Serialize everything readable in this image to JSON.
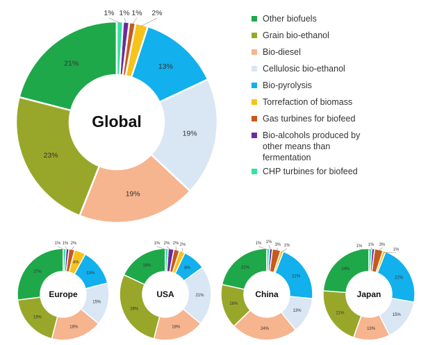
{
  "chart_data": {
    "type": "pie",
    "categories": [
      "Other biofuels",
      "Grain bio-ethanol",
      "Bio-diesel",
      "Cellulosic bio-ethanol",
      "Bio-pyrolysis",
      "Torrefaction of biomass",
      "Gas turbines for biofeed",
      "Bio-alcohols produced by other means than fermentation",
      "CHP turbines for biofeed"
    ],
    "colors": [
      "#1ea84a",
      "#98a72a",
      "#f6b48f",
      "#d9e6f3",
      "#12b0ec",
      "#f7c21c",
      "#c55a1e",
      "#6b2b9c",
      "#34e39e"
    ],
    "charts": [
      {
        "title": "Global",
        "values": [
          21,
          23,
          19,
          19,
          13,
          2,
          1,
          1,
          1
        ],
        "labels": [
          "21%",
          "23%",
          "19%",
          "19%",
          "13%",
          "2%",
          "1%",
          "1%",
          "1%"
        ]
      },
      {
        "title": "Europe",
        "values": [
          27,
          19,
          18,
          15,
          13,
          4,
          2,
          1,
          1
        ],
        "labels": [
          "27%",
          "19%",
          "18%",
          "15%",
          "13%",
          "4%",
          "2%",
          "1%",
          "1%"
        ]
      },
      {
        "title": "USA",
        "values": [
          18,
          28,
          18,
          21,
          8,
          2,
          2,
          2,
          1
        ],
        "labels": [
          "18%",
          "28%",
          "18%",
          "21%",
          "8%",
          "2%",
          "2%",
          "2%",
          "1%"
        ]
      },
      {
        "title": "China",
        "values": [
          22,
          16,
          24,
          13,
          21,
          1,
          3,
          1,
          1
        ],
        "labels": [
          "22%",
          "16%",
          "24%",
          "13%",
          "21%",
          "1%",
          "3%",
          "1%",
          "1%"
        ]
      },
      {
        "title": "Japan",
        "values": [
          24,
          21,
          13,
          15,
          22,
          1,
          3,
          1,
          1
        ],
        "labels": [
          "24%",
          "21%",
          "13%",
          "15%",
          "22%",
          "1%",
          "3%",
          "1%",
          "1%"
        ]
      }
    ]
  }
}
